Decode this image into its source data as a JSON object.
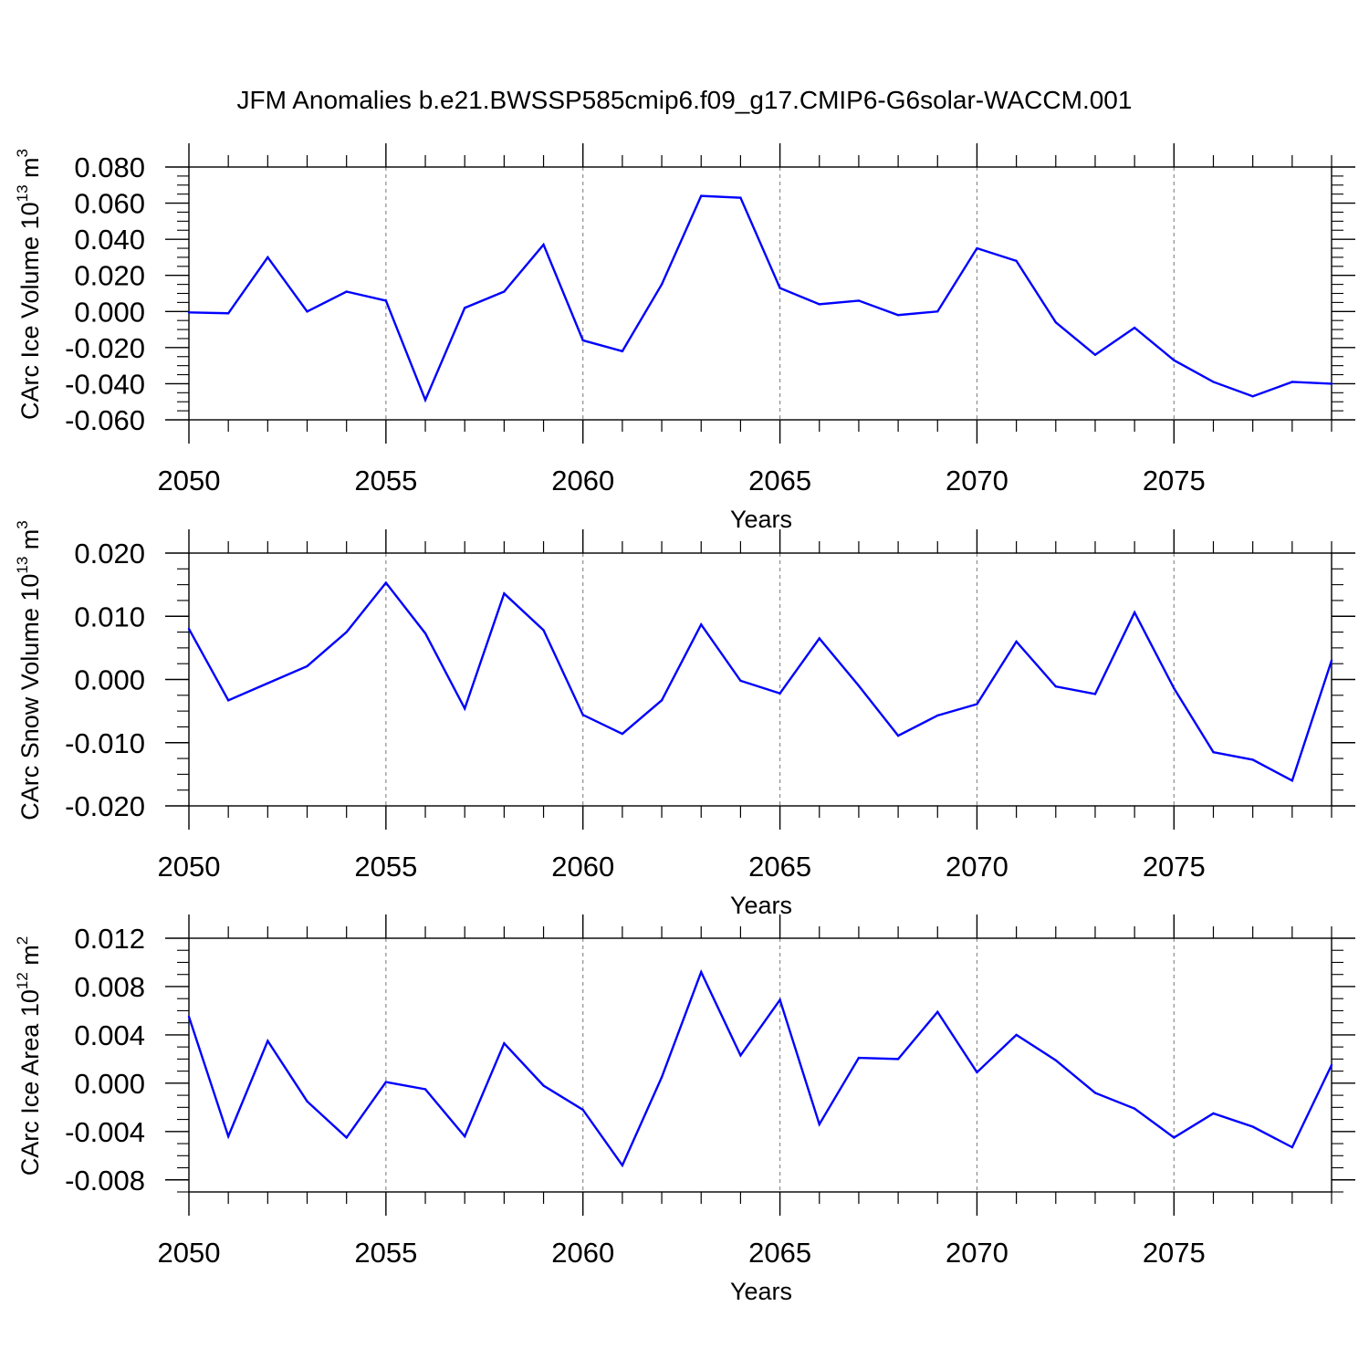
{
  "title": "JFM Anomalies b.e21.BWSSP585cmip6.f09_g17.CMIP6-G6solar-WACCM.001",
  "colors": {
    "line": "#0000ff",
    "axis": "#000000",
    "grid": "#8c8c8c",
    "background": "#ffffff"
  },
  "chart_data": [
    {
      "type": "line",
      "ylabel": {
        "text": "CArc Ice Volume 10",
        "exponent": "13",
        "unit": " m",
        "unit_exponent": "3"
      },
      "xlabel": "Years",
      "xlim": [
        2050,
        2079
      ],
      "ylim": [
        -0.06,
        0.08
      ],
      "yticks": [
        0.08,
        0.06,
        0.04,
        0.02,
        0.0,
        -0.02,
        -0.04,
        -0.06
      ],
      "ytick_labels": [
        "0.080",
        "0.060",
        "0.040",
        "0.020",
        "0.000",
        "-0.020",
        "-0.040",
        "-0.060"
      ],
      "xticks": [
        2050,
        2055,
        2060,
        2065,
        2070,
        2075
      ],
      "xtick_labels": [
        "2050",
        "2055",
        "2060",
        "2065",
        "2070",
        "2075"
      ],
      "grid": "vertical dashed at major x ticks",
      "x": [
        2050,
        2051,
        2052,
        2053,
        2054,
        2055,
        2056,
        2057,
        2058,
        2059,
        2060,
        2061,
        2062,
        2063,
        2064,
        2065,
        2066,
        2067,
        2068,
        2069,
        2070,
        2071,
        2072,
        2073,
        2074,
        2075,
        2076,
        2077,
        2078,
        2079
      ],
      "values": [
        -0.0005,
        -0.001,
        0.03,
        0.0,
        0.011,
        0.006,
        -0.049,
        0.002,
        0.011,
        0.037,
        -0.016,
        -0.022,
        0.015,
        0.064,
        0.063,
        0.013,
        0.004,
        0.006,
        -0.002,
        0.0,
        0.035,
        0.028,
        -0.006,
        -0.024,
        -0.009,
        -0.027,
        -0.039,
        -0.047,
        -0.039,
        -0.04
      ]
    },
    {
      "type": "line",
      "ylabel": {
        "text": "CArc Snow Volume 10",
        "exponent": "13",
        "unit": " m",
        "unit_exponent": "3"
      },
      "xlabel": "Years",
      "xlim": [
        2050,
        2079
      ],
      "ylim": [
        -0.02,
        0.02
      ],
      "yticks": [
        0.02,
        0.01,
        0.0,
        -0.01,
        -0.02
      ],
      "ytick_labels": [
        "0.020",
        "0.010",
        "0.000",
        "-0.010",
        "-0.020"
      ],
      "xticks": [
        2050,
        2055,
        2060,
        2065,
        2070,
        2075
      ],
      "xtick_labels": [
        "2050",
        "2055",
        "2060",
        "2065",
        "2070",
        "2075"
      ],
      "grid": "vertical dashed at major x ticks",
      "x": [
        2050,
        2051,
        2052,
        2053,
        2054,
        2055,
        2056,
        2057,
        2058,
        2059,
        2060,
        2061,
        2062,
        2063,
        2064,
        2065,
        2066,
        2067,
        2068,
        2069,
        2070,
        2071,
        2072,
        2073,
        2074,
        2075,
        2076,
        2077,
        2078,
        2079
      ],
      "values": [
        0.008,
        -0.0033,
        -0.0006,
        0.0021,
        0.0075,
        0.0153,
        0.0073,
        -0.0046,
        0.0136,
        0.0078,
        -0.0056,
        -0.0086,
        -0.0033,
        0.0087,
        -0.0002,
        -0.0022,
        0.0065,
        -0.001,
        -0.0089,
        -0.0057,
        -0.0039,
        0.006,
        -0.0011,
        -0.0023,
        0.0106,
        -0.0014,
        -0.0115,
        -0.0127,
        -0.016,
        0.003
      ]
    },
    {
      "type": "line",
      "ylabel": {
        "text": "CArc Ice Area 10",
        "exponent": "12",
        "unit": " m",
        "unit_exponent": "2"
      },
      "xlabel": "Years",
      "xlim": [
        2050,
        2079
      ],
      "ylim": [
        -0.009,
        0.012
      ],
      "yticks": [
        0.012,
        0.008,
        0.004,
        0.0,
        -0.004,
        -0.008
      ],
      "ytick_labels": [
        "0.012",
        "0.008",
        "0.004",
        "0.000",
        "-0.004",
        "-0.008"
      ],
      "xticks": [
        2050,
        2055,
        2060,
        2065,
        2070,
        2075
      ],
      "xtick_labels": [
        "2050",
        "2055",
        "2060",
        "2065",
        "2070",
        "2075"
      ],
      "grid": "vertical dashed at major x ticks",
      "x": [
        2050,
        2051,
        2052,
        2053,
        2054,
        2055,
        2056,
        2057,
        2058,
        2059,
        2060,
        2061,
        2062,
        2063,
        2064,
        2065,
        2066,
        2067,
        2068,
        2069,
        2070,
        2071,
        2072,
        2073,
        2074,
        2075,
        2076,
        2077,
        2078,
        2079
      ],
      "values": [
        0.0055,
        -0.0044,
        0.0035,
        -0.0015,
        -0.0045,
        0.0001,
        -0.0005,
        -0.0044,
        0.0033,
        -0.0002,
        -0.0022,
        -0.0068,
        0.0005,
        0.0092,
        0.0023,
        0.0069,
        -0.0034,
        0.0021,
        0.002,
        0.0059,
        0.0009,
        0.004,
        0.0019,
        -0.0008,
        -0.0021,
        -0.0045,
        -0.0025,
        -0.0036,
        -0.0053,
        0.0015
      ]
    }
  ]
}
